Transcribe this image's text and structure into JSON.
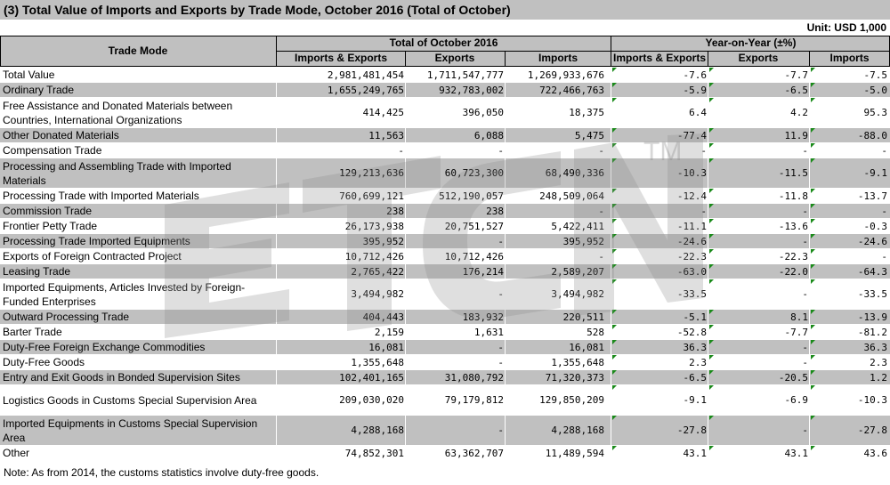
{
  "title": "(3) Total Value of Imports and Exports by Trade Mode, October 2016 (Total of October)",
  "unit": "Unit: USD 1,000",
  "headers": {
    "trade_mode": "Trade Mode",
    "total_group": "Total of October 2016",
    "yoy_group": "Year-on-Year (±%)",
    "imports_exports": "Imports & Exports",
    "exports": "Exports",
    "imports": "Imports"
  },
  "watermark": "ETCN",
  "rows": [
    {
      "label": "Total Value",
      "ie": "2,981,481,454",
      "ex": "1,711,547,777",
      "im": "1,269,933,676",
      "y_ie": "-7.6",
      "y_ex": "-7.7",
      "y_im": "-7.5"
    },
    {
      "label": "Ordinary Trade",
      "ie": "1,655,249,765",
      "ex": "932,783,002",
      "im": "722,466,763",
      "y_ie": "-5.9",
      "y_ex": "-6.5",
      "y_im": "-5.0"
    },
    {
      "label": "Free Assistance and Donated Materials between Countries, International Organizations",
      "ie": "414,425",
      "ex": "396,050",
      "im": "18,375",
      "y_ie": "6.4",
      "y_ex": "4.2",
      "y_im": "95.3"
    },
    {
      "label": "Other Donated Materials",
      "ie": "11,563",
      "ex": "6,088",
      "im": "5,475",
      "y_ie": "-77.4",
      "y_ex": "11.9",
      "y_im": "-88.0"
    },
    {
      "label": "Compensation Trade",
      "ie": "-",
      "ex": "-",
      "im": "-",
      "y_ie": "-",
      "y_ex": "-",
      "y_im": "-"
    },
    {
      "label": "Processing and Assembling Trade with Imported Materials",
      "ie": "129,213,636",
      "ex": "60,723,300",
      "im": "68,490,336",
      "y_ie": "-10.3",
      "y_ex": "-11.5",
      "y_im": "-9.1"
    },
    {
      "label": "Processing Trade with Imported Materials",
      "ie": "760,699,121",
      "ex": "512,190,057",
      "im": "248,509,064",
      "y_ie": "-12.4",
      "y_ex": "-11.8",
      "y_im": "-13.7"
    },
    {
      "label": "Commission Trade",
      "ie": "238",
      "ex": "238",
      "im": "-",
      "y_ie": "-",
      "y_ex": "-",
      "y_im": "-"
    },
    {
      "label": "Frontier Petty Trade",
      "ie": "26,173,938",
      "ex": "20,751,527",
      "im": "5,422,411",
      "y_ie": "-11.1",
      "y_ex": "-13.6",
      "y_im": "-0.3"
    },
    {
      "label": "Processing Trade Imported Equipments",
      "ie": "395,952",
      "ex": "-",
      "im": "395,952",
      "y_ie": "-24.6",
      "y_ex": "-",
      "y_im": "-24.6"
    },
    {
      "label": "Exports of Foreign Contracted Project",
      "ie": "10,712,426",
      "ex": "10,712,426",
      "im": "-",
      "y_ie": "-22.3",
      "y_ex": "-22.3",
      "y_im": "-"
    },
    {
      "label": "Leasing Trade",
      "ie": "2,765,422",
      "ex": "176,214",
      "im": "2,589,207",
      "y_ie": "-63.0",
      "y_ex": "-22.0",
      "y_im": "-64.3"
    },
    {
      "label": "Imported Equipments, Articles Invested by Foreign-Funded Enterprises",
      "ie": "3,494,982",
      "ex": "-",
      "im": "3,494,982",
      "y_ie": "-33.5",
      "y_ex": "-",
      "y_im": "-33.5"
    },
    {
      "label": "Outward Processing Trade",
      "ie": "404,443",
      "ex": "183,932",
      "im": "220,511",
      "y_ie": "-5.1",
      "y_ex": "8.1",
      "y_im": "-13.9"
    },
    {
      "label": "Barter Trade",
      "ie": "2,159",
      "ex": "1,631",
      "im": "528",
      "y_ie": "-52.8",
      "y_ex": "-7.7",
      "y_im": "-81.2"
    },
    {
      "label": "Duty-Free Foreign Exchange Commodities",
      "ie": "16,081",
      "ex": "-",
      "im": "16,081",
      "y_ie": "36.3",
      "y_ex": "-",
      "y_im": "36.3"
    },
    {
      "label": "Duty-Free Goods",
      "ie": "1,355,648",
      "ex": "-",
      "im": "1,355,648",
      "y_ie": "2.3",
      "y_ex": "-",
      "y_im": "2.3"
    },
    {
      "label": "Entry and Exit Goods in Bonded Supervision Sites",
      "ie": "102,401,165",
      "ex": "31,080,792",
      "im": "71,320,373",
      "y_ie": "-6.5",
      "y_ex": "-20.5",
      "y_im": "1.2"
    },
    {
      "label": "Logistics Goods in Customs Special Supervision Area",
      "ie": "209,030,020",
      "ex": "79,179,812",
      "im": "129,850,209",
      "y_ie": "-9.1",
      "y_ex": "-6.9",
      "y_im": "-10.3"
    },
    {
      "label": "Imported Equipments in Customs Special Supervision Area",
      "ie": "4,288,168",
      "ex": "-",
      "im": "4,288,168",
      "y_ie": "-27.8",
      "y_ex": "-",
      "y_im": "-27.8"
    },
    {
      "label": "Other",
      "ie": "74,852,301",
      "ex": "63,362,707",
      "im": "11,489,594",
      "y_ie": "43.1",
      "y_ex": "43.1",
      "y_im": "43.6"
    }
  ],
  "note": "Note: As from 2014, the customs statistics involve duty-free goods."
}
